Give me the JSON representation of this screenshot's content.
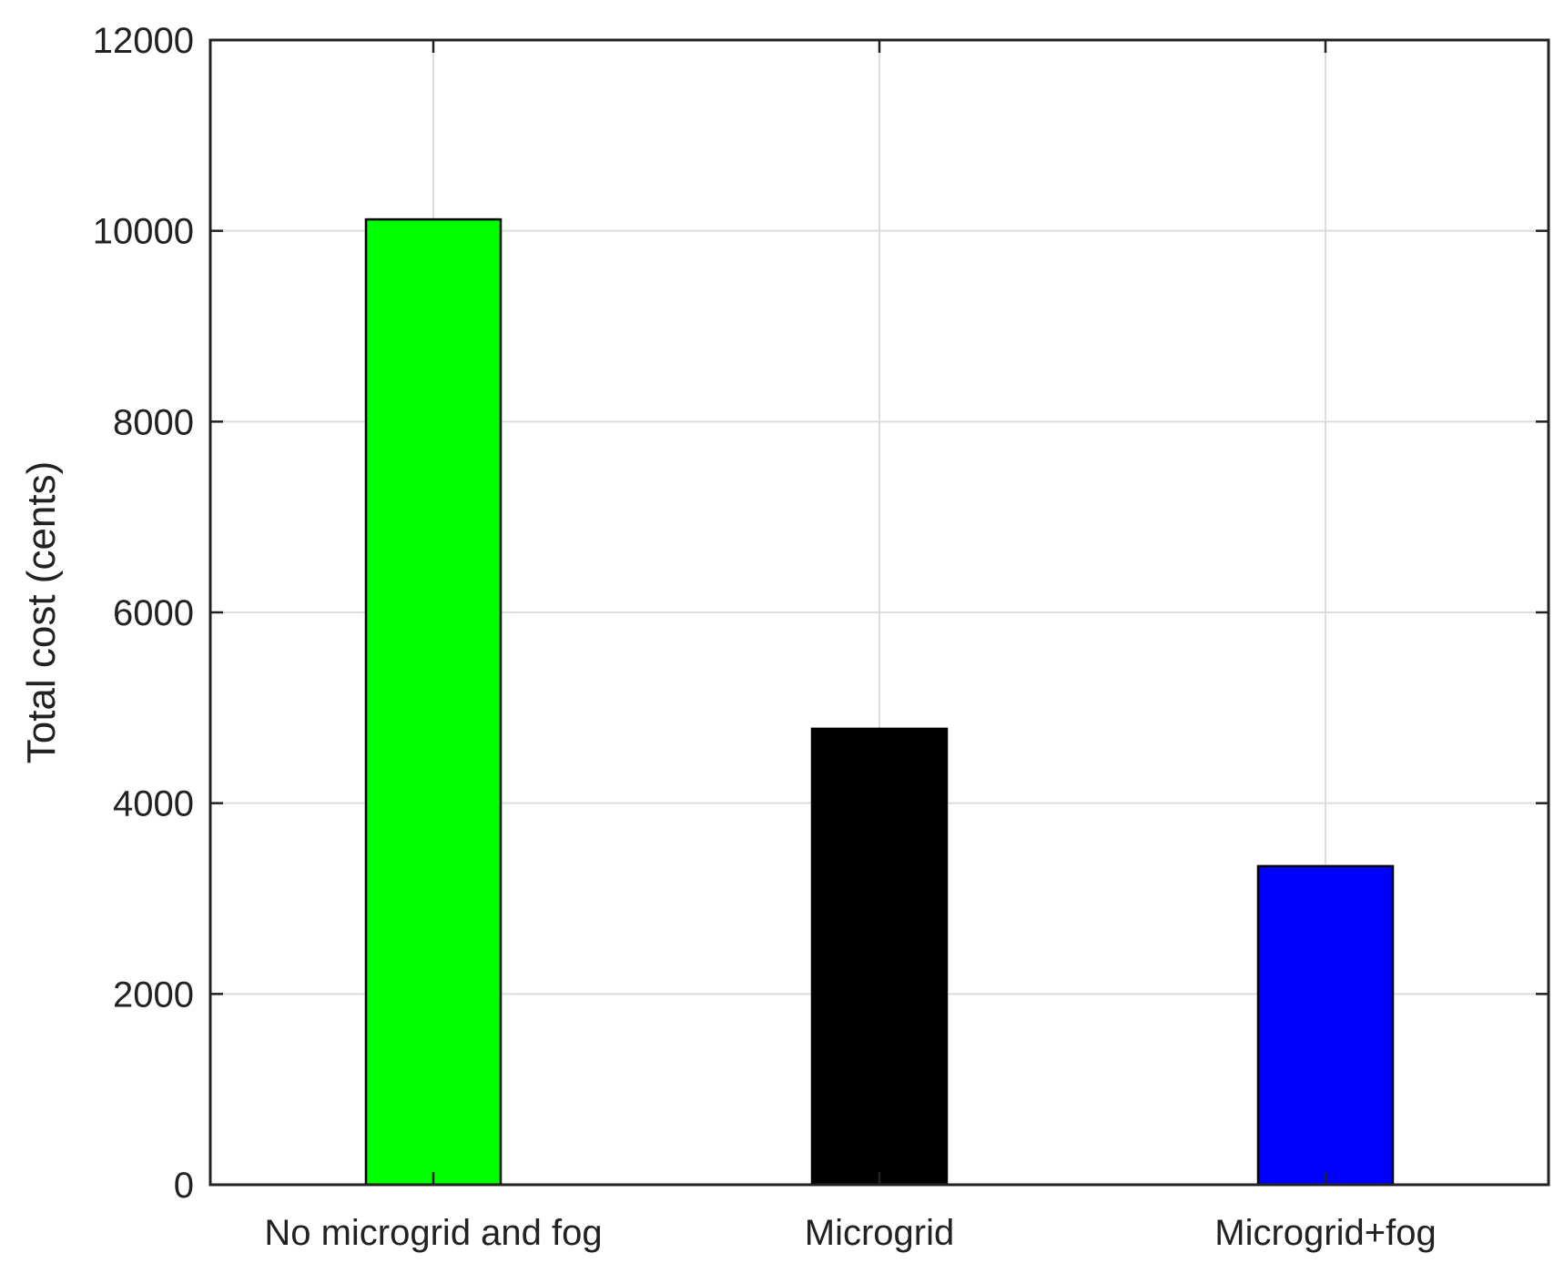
{
  "chart_data": {
    "type": "bar",
    "title": "",
    "xlabel": "",
    "ylabel": "Total cost (cents)",
    "categories": [
      "No microgrid and fog",
      "Microgrid",
      "Microgrid+fog"
    ],
    "values": [
      10120,
      4780,
      3340
    ],
    "bar_colors": [
      "#00ff00",
      "#000000",
      "#0000ff"
    ],
    "ylim": [
      0,
      12000
    ],
    "yticks": [
      0,
      2000,
      4000,
      6000,
      8000,
      10000,
      12000
    ],
    "ytick_labels": [
      "0",
      "2000",
      "4000",
      "6000",
      "8000",
      "10000",
      "12000"
    ],
    "grid": true
  },
  "colors": {
    "grid": "#dcdcdc",
    "axis": "#222222",
    "bar_edge": "#000000"
  }
}
